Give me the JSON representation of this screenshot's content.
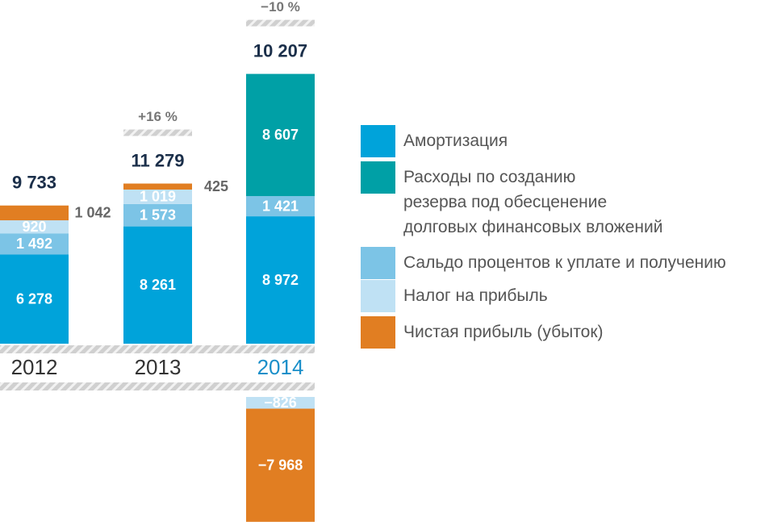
{
  "chart_data": {
    "type": "bar",
    "stacked": true,
    "categories": [
      "2012",
      "2013",
      "2014"
    ],
    "series": [
      {
        "name": "Амортизация",
        "color": "#00a3da",
        "values": [
          6278,
          8261,
          8972
        ],
        "value_labels": [
          "6 278",
          "8 261",
          "8 972"
        ]
      },
      {
        "name": "Расходы по созданию\nрезерва под обесценение\nдолговых финансовых вложений",
        "color": "#00a0a6",
        "values": [
          null,
          null,
          8607
        ],
        "value_labels": [
          null,
          null,
          "8 607"
        ]
      },
      {
        "name": "Сальдо процентов к уплате и получению",
        "color": "#7cc4e6",
        "values": [
          1492,
          1573,
          1421
        ],
        "value_labels": [
          "1 492",
          "1 573",
          "1 421"
        ]
      },
      {
        "name": "Налог на прибыль",
        "color": "#bfe1f4",
        "values": [
          920,
          1019,
          -826
        ],
        "value_labels": [
          "920",
          "1 019",
          "−826"
        ]
      },
      {
        "name": "Чистая прибыль (убыток)",
        "color": "#e17e22",
        "values": [
          1042,
          425,
          -7968
        ],
        "value_labels": [
          "1 042",
          "425",
          "−7 968"
        ]
      }
    ],
    "totals": [
      9733,
      11279,
      10207
    ],
    "total_labels": [
      "9 733",
      "11 279",
      "10 207"
    ],
    "change_labels": [
      null,
      "+16 %",
      "−10 %"
    ]
  }
}
